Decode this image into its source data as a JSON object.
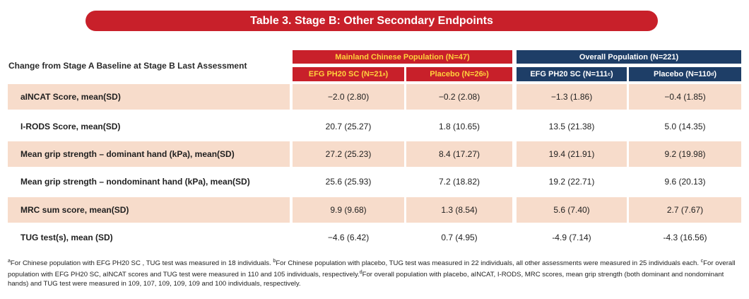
{
  "title": "Table 3. Stage B: Other Secondary Endpoints",
  "row_header_label": "Change from Stage A Baseline at Stage B Last Assessment",
  "groups": {
    "mainland": "Mainland Chinese Population (N=47)",
    "overall": "Overall Population (N=221)"
  },
  "columns": [
    {
      "label": "EFG PH20 SC (N=21",
      "sup": "a",
      "close": ")"
    },
    {
      "label": "Placebo (N=26",
      "sup": "b",
      "close": ")"
    },
    {
      "label": "EFG PH20 SC (N=111",
      "sup": "c",
      "close": ")"
    },
    {
      "label": "Placebo (N=110",
      "sup": "d",
      "close": ")"
    }
  ],
  "rows": [
    {
      "label": "aINCAT Score, mean(SD)",
      "values": [
        "−2.0 (2.80)",
        "−0.2 (2.08)",
        "−1.3 (1.86)",
        "−0.4 (1.85)"
      ]
    },
    {
      "label": "I-RODS Score, mean(SD)",
      "values": [
        "20.7 (25.27)",
        "1.8 (10.65)",
        "13.5 (21.38)",
        "5.0 (14.35)"
      ]
    },
    {
      "label": "Mean grip strength – dominant hand (kPa), mean(SD)",
      "values": [
        "27.2 (25.23)",
        "8.4 (17.27)",
        "19.4 (21.91)",
        "9.2 (19.98)"
      ]
    },
    {
      "label": "Mean grip strength – nondominant hand (kPa), mean(SD)",
      "values": [
        "25.6 (25.93)",
        "7.2 (18.82)",
        "19.2 (22.71)",
        "9.6 (20.13)"
      ]
    },
    {
      "label": "MRC sum score, mean(SD)",
      "values": [
        "9.9 (9.68)",
        "1.3 (8.54)",
        "5.6 (7.40)",
        "2.7 (7.67)"
      ]
    },
    {
      "label": "TUG test(s), mean (SD)",
      "values": [
        "−4.6 (6.42)",
        "0.7 (4.95)",
        "-4.9 (7.14)",
        "-4.3 (16.56)"
      ]
    }
  ],
  "footnotes": [
    {
      "sup": "a",
      "text": "For Chinese population with EFG PH20 SC , TUG test was measured in 18 individuals. "
    },
    {
      "sup": "b",
      "text": "For Chinese population with placebo, TUG test was measured in 22 individuals, all other assessments were measured in 25 individuals each. "
    },
    {
      "sup": "c",
      "text": "For overall population with EFG PH20 SC, aINCAT scores and TUG test were measured in 110 and 105 individuals, respectively."
    },
    {
      "sup": "d",
      "text": "For overall population with placebo, aINCAT, I-RODS, MRC scores, mean grip strength (both dominant and nondominant hands) and TUG test were measured in 109, 107, 109, 109, 109 and 100 individuals, respectively."
    }
  ],
  "colors": {
    "accent_red": "#c8202a",
    "navy": "#1e3e67",
    "row_shade": "#f7dccb",
    "header_gold": "#ffd23c"
  }
}
